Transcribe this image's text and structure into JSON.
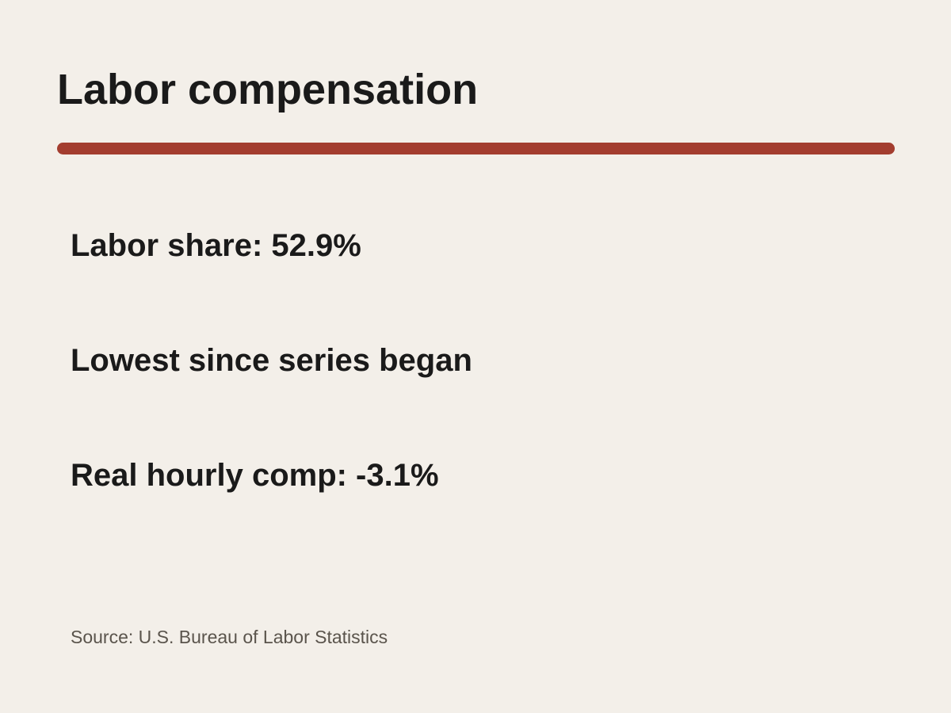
{
  "header": {
    "title": "Labor compensation"
  },
  "items": [
    "Labor share: 52.9%",
    "Lowest since series began",
    "Real hourly comp: -3.1%"
  ],
  "footer": {
    "source": "Source: U.S. Bureau of Labor Statistics"
  }
}
